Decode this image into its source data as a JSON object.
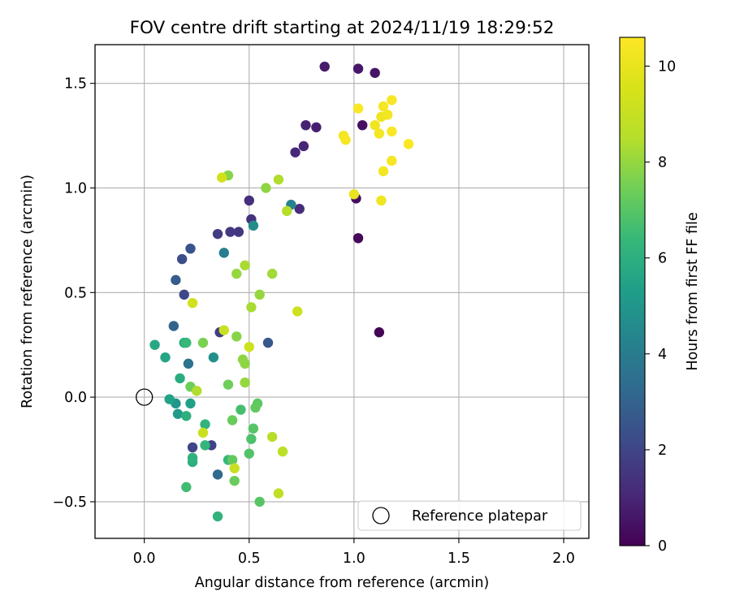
{
  "chart_data": {
    "type": "scatter",
    "title": "FOV centre drift starting at 2024/11/19 18:29:52",
    "xlabel": "Angular distance from reference (arcmin)",
    "ylabel": "Rotation from reference (arcmin)",
    "xlim": [
      -0.235,
      2.12
    ],
    "ylim": [
      -0.675,
      1.685
    ],
    "xticks": [
      0.0,
      0.5,
      1.0,
      1.5,
      2.0
    ],
    "xtick_labels": [
      "0.0",
      "0.5",
      "1.0",
      "1.5",
      "2.0"
    ],
    "yticks": [
      -0.5,
      0.0,
      0.5,
      1.0,
      1.5
    ],
    "ytick_labels": [
      "−0.5",
      "0.0",
      "0.5",
      "1.0",
      "1.5"
    ],
    "grid": true,
    "legend": {
      "location": "lower right",
      "entries": [
        "Reference platepar"
      ]
    },
    "colorbar": {
      "label": "Hours from first FF file",
      "colormap": "viridis",
      "range": [
        0,
        10.6
      ],
      "ticks": [
        0,
        2,
        4,
        6,
        8,
        10
      ],
      "tick_labels": [
        "0",
        "2",
        "4",
        "6",
        "8",
        "10"
      ]
    },
    "reference_point": {
      "x": 0.0,
      "y": 0.0
    },
    "points": [
      {
        "x": 1.12,
        "y": 0.31,
        "c": 0.1
      },
      {
        "x": 1.02,
        "y": 0.76,
        "c": 0.2
      },
      {
        "x": 1.01,
        "y": 0.95,
        "c": 0.3
      },
      {
        "x": 1.04,
        "y": 1.3,
        "c": 0.4
      },
      {
        "x": 1.1,
        "y": 1.55,
        "c": 0.5
      },
      {
        "x": 1.02,
        "y": 1.57,
        "c": 0.6
      },
      {
        "x": 0.86,
        "y": 1.58,
        "c": 0.7
      },
      {
        "x": 0.82,
        "y": 1.29,
        "c": 0.8
      },
      {
        "x": 0.77,
        "y": 1.3,
        "c": 0.9
      },
      {
        "x": 0.76,
        "y": 1.2,
        "c": 1.0
      },
      {
        "x": 0.72,
        "y": 1.17,
        "c": 1.1
      },
      {
        "x": 0.74,
        "y": 0.9,
        "c": 1.2
      },
      {
        "x": 0.5,
        "y": 0.94,
        "c": 1.3
      },
      {
        "x": 0.51,
        "y": 0.85,
        "c": 1.4
      },
      {
        "x": 0.45,
        "y": 0.79,
        "c": 1.5
      },
      {
        "x": 0.41,
        "y": 0.79,
        "c": 1.6
      },
      {
        "x": 0.35,
        "y": 0.78,
        "c": 1.7
      },
      {
        "x": 0.36,
        "y": 0.31,
        "c": 1.8
      },
      {
        "x": 0.32,
        "y": -0.23,
        "c": 1.9
      },
      {
        "x": 0.23,
        "y": -0.24,
        "c": 2.0
      },
      {
        "x": 0.19,
        "y": 0.49,
        "c": 2.1
      },
      {
        "x": 0.18,
        "y": 0.66,
        "c": 2.3
      },
      {
        "x": 0.22,
        "y": 0.71,
        "c": 2.5
      },
      {
        "x": 0.59,
        "y": 0.26,
        "c": 2.6
      },
      {
        "x": 0.15,
        "y": 0.56,
        "c": 2.8
      },
      {
        "x": 0.14,
        "y": 0.34,
        "c": 3.0
      },
      {
        "x": 0.35,
        "y": -0.37,
        "c": 3.3
      },
      {
        "x": 0.21,
        "y": 0.16,
        "c": 3.6
      },
      {
        "x": 0.38,
        "y": 0.69,
        "c": 4.1
      },
      {
        "x": 0.7,
        "y": 0.92,
        "c": 4.3
      },
      {
        "x": 0.52,
        "y": 0.82,
        "c": 4.6
      },
      {
        "x": 0.33,
        "y": 0.19,
        "c": 4.8
      },
      {
        "x": 0.15,
        "y": -0.03,
        "c": 5.0
      },
      {
        "x": 0.16,
        "y": -0.08,
        "c": 5.2
      },
      {
        "x": 0.22,
        "y": -0.03,
        "c": 5.4
      },
      {
        "x": 0.12,
        "y": -0.01,
        "c": 5.5
      },
      {
        "x": 0.1,
        "y": 0.19,
        "c": 5.6
      },
      {
        "x": 0.05,
        "y": 0.25,
        "c": 5.7
      },
      {
        "x": 0.19,
        "y": 0.26,
        "c": 5.8
      },
      {
        "x": 0.17,
        "y": 0.09,
        "c": 5.9
      },
      {
        "x": 0.2,
        "y": -0.09,
        "c": 6.0
      },
      {
        "x": 0.23,
        "y": -0.31,
        "c": 6.0
      },
      {
        "x": 0.23,
        "y": -0.29,
        "c": 6.1
      },
      {
        "x": 0.29,
        "y": -0.13,
        "c": 6.2
      },
      {
        "x": 0.29,
        "y": -0.23,
        "c": 6.3
      },
      {
        "x": 0.35,
        "y": -0.57,
        "c": 6.2
      },
      {
        "x": 0.2,
        "y": 0.26,
        "c": 6.4
      },
      {
        "x": 0.4,
        "y": -0.3,
        "c": 6.4
      },
      {
        "x": 0.2,
        "y": -0.43,
        "c": 6.6
      },
      {
        "x": 0.46,
        "y": -0.06,
        "c": 6.7
      },
      {
        "x": 0.51,
        "y": -0.2,
        "c": 6.8
      },
      {
        "x": 0.5,
        "y": -0.27,
        "c": 6.9
      },
      {
        "x": 0.52,
        "y": -0.15,
        "c": 7.0
      },
      {
        "x": 0.55,
        "y": -0.5,
        "c": 7.0
      },
      {
        "x": 0.54,
        "y": -0.03,
        "c": 7.1
      },
      {
        "x": 0.53,
        "y": -0.05,
        "c": 7.2
      },
      {
        "x": 0.42,
        "y": -0.3,
        "c": 7.2
      },
      {
        "x": 0.43,
        "y": -0.4,
        "c": 7.3
      },
      {
        "x": 0.42,
        "y": -0.11,
        "c": 7.3
      },
      {
        "x": 0.4,
        "y": 0.06,
        "c": 7.4
      },
      {
        "x": 0.22,
        "y": 0.05,
        "c": 7.4
      },
      {
        "x": 0.28,
        "y": 0.26,
        "c": 7.6
      },
      {
        "x": 0.44,
        "y": 0.29,
        "c": 7.8
      },
      {
        "x": 0.48,
        "y": 0.16,
        "c": 7.9
      },
      {
        "x": 0.47,
        "y": 0.18,
        "c": 7.9
      },
      {
        "x": 0.48,
        "y": 0.07,
        "c": 8.0
      },
      {
        "x": 0.4,
        "y": 1.06,
        "c": 7.8
      },
      {
        "x": 0.58,
        "y": 1.0,
        "c": 7.9
      },
      {
        "x": 0.44,
        "y": 0.59,
        "c": 8.0
      },
      {
        "x": 0.55,
        "y": 0.49,
        "c": 8.0
      },
      {
        "x": 0.61,
        "y": 0.59,
        "c": 8.2
      },
      {
        "x": 0.48,
        "y": 0.63,
        "c": 8.3
      },
      {
        "x": 0.51,
        "y": 0.43,
        "c": 8.3
      },
      {
        "x": 0.25,
        "y": 0.03,
        "c": 8.4
      },
      {
        "x": 0.64,
        "y": 1.04,
        "c": 8.4
      },
      {
        "x": 0.68,
        "y": 0.89,
        "c": 8.5
      },
      {
        "x": 0.61,
        "y": -0.19,
        "c": 8.6
      },
      {
        "x": 0.66,
        "y": -0.26,
        "c": 8.7
      },
      {
        "x": 0.64,
        "y": -0.46,
        "c": 8.8
      },
      {
        "x": 0.43,
        "y": -0.34,
        "c": 9.0
      },
      {
        "x": 0.28,
        "y": -0.17,
        "c": 9.1
      },
      {
        "x": 0.38,
        "y": 0.32,
        "c": 9.1
      },
      {
        "x": 0.5,
        "y": 0.24,
        "c": 9.2
      },
      {
        "x": 0.23,
        "y": 0.45,
        "c": 9.3
      },
      {
        "x": 0.73,
        "y": 0.41,
        "c": 9.2
      },
      {
        "x": 0.37,
        "y": 1.05,
        "c": 9.4
      },
      {
        "x": 1.0,
        "y": 0.97,
        "c": 10.0
      },
      {
        "x": 1.13,
        "y": 0.94,
        "c": 10.2
      },
      {
        "x": 1.14,
        "y": 1.08,
        "c": 10.3
      },
      {
        "x": 1.18,
        "y": 1.13,
        "c": 10.4
      },
      {
        "x": 1.26,
        "y": 1.21,
        "c": 10.5
      },
      {
        "x": 0.95,
        "y": 1.25,
        "c": 10.3
      },
      {
        "x": 0.96,
        "y": 1.23,
        "c": 10.4
      },
      {
        "x": 1.1,
        "y": 1.3,
        "c": 10.2
      },
      {
        "x": 1.12,
        "y": 1.26,
        "c": 10.3
      },
      {
        "x": 1.13,
        "y": 1.34,
        "c": 10.2
      },
      {
        "x": 1.14,
        "y": 1.39,
        "c": 10.4
      },
      {
        "x": 1.16,
        "y": 1.35,
        "c": 10.3
      },
      {
        "x": 1.18,
        "y": 1.27,
        "c": 10.5
      },
      {
        "x": 1.18,
        "y": 1.42,
        "c": 10.4
      },
      {
        "x": 1.02,
        "y": 1.38,
        "c": 10.5
      }
    ]
  }
}
